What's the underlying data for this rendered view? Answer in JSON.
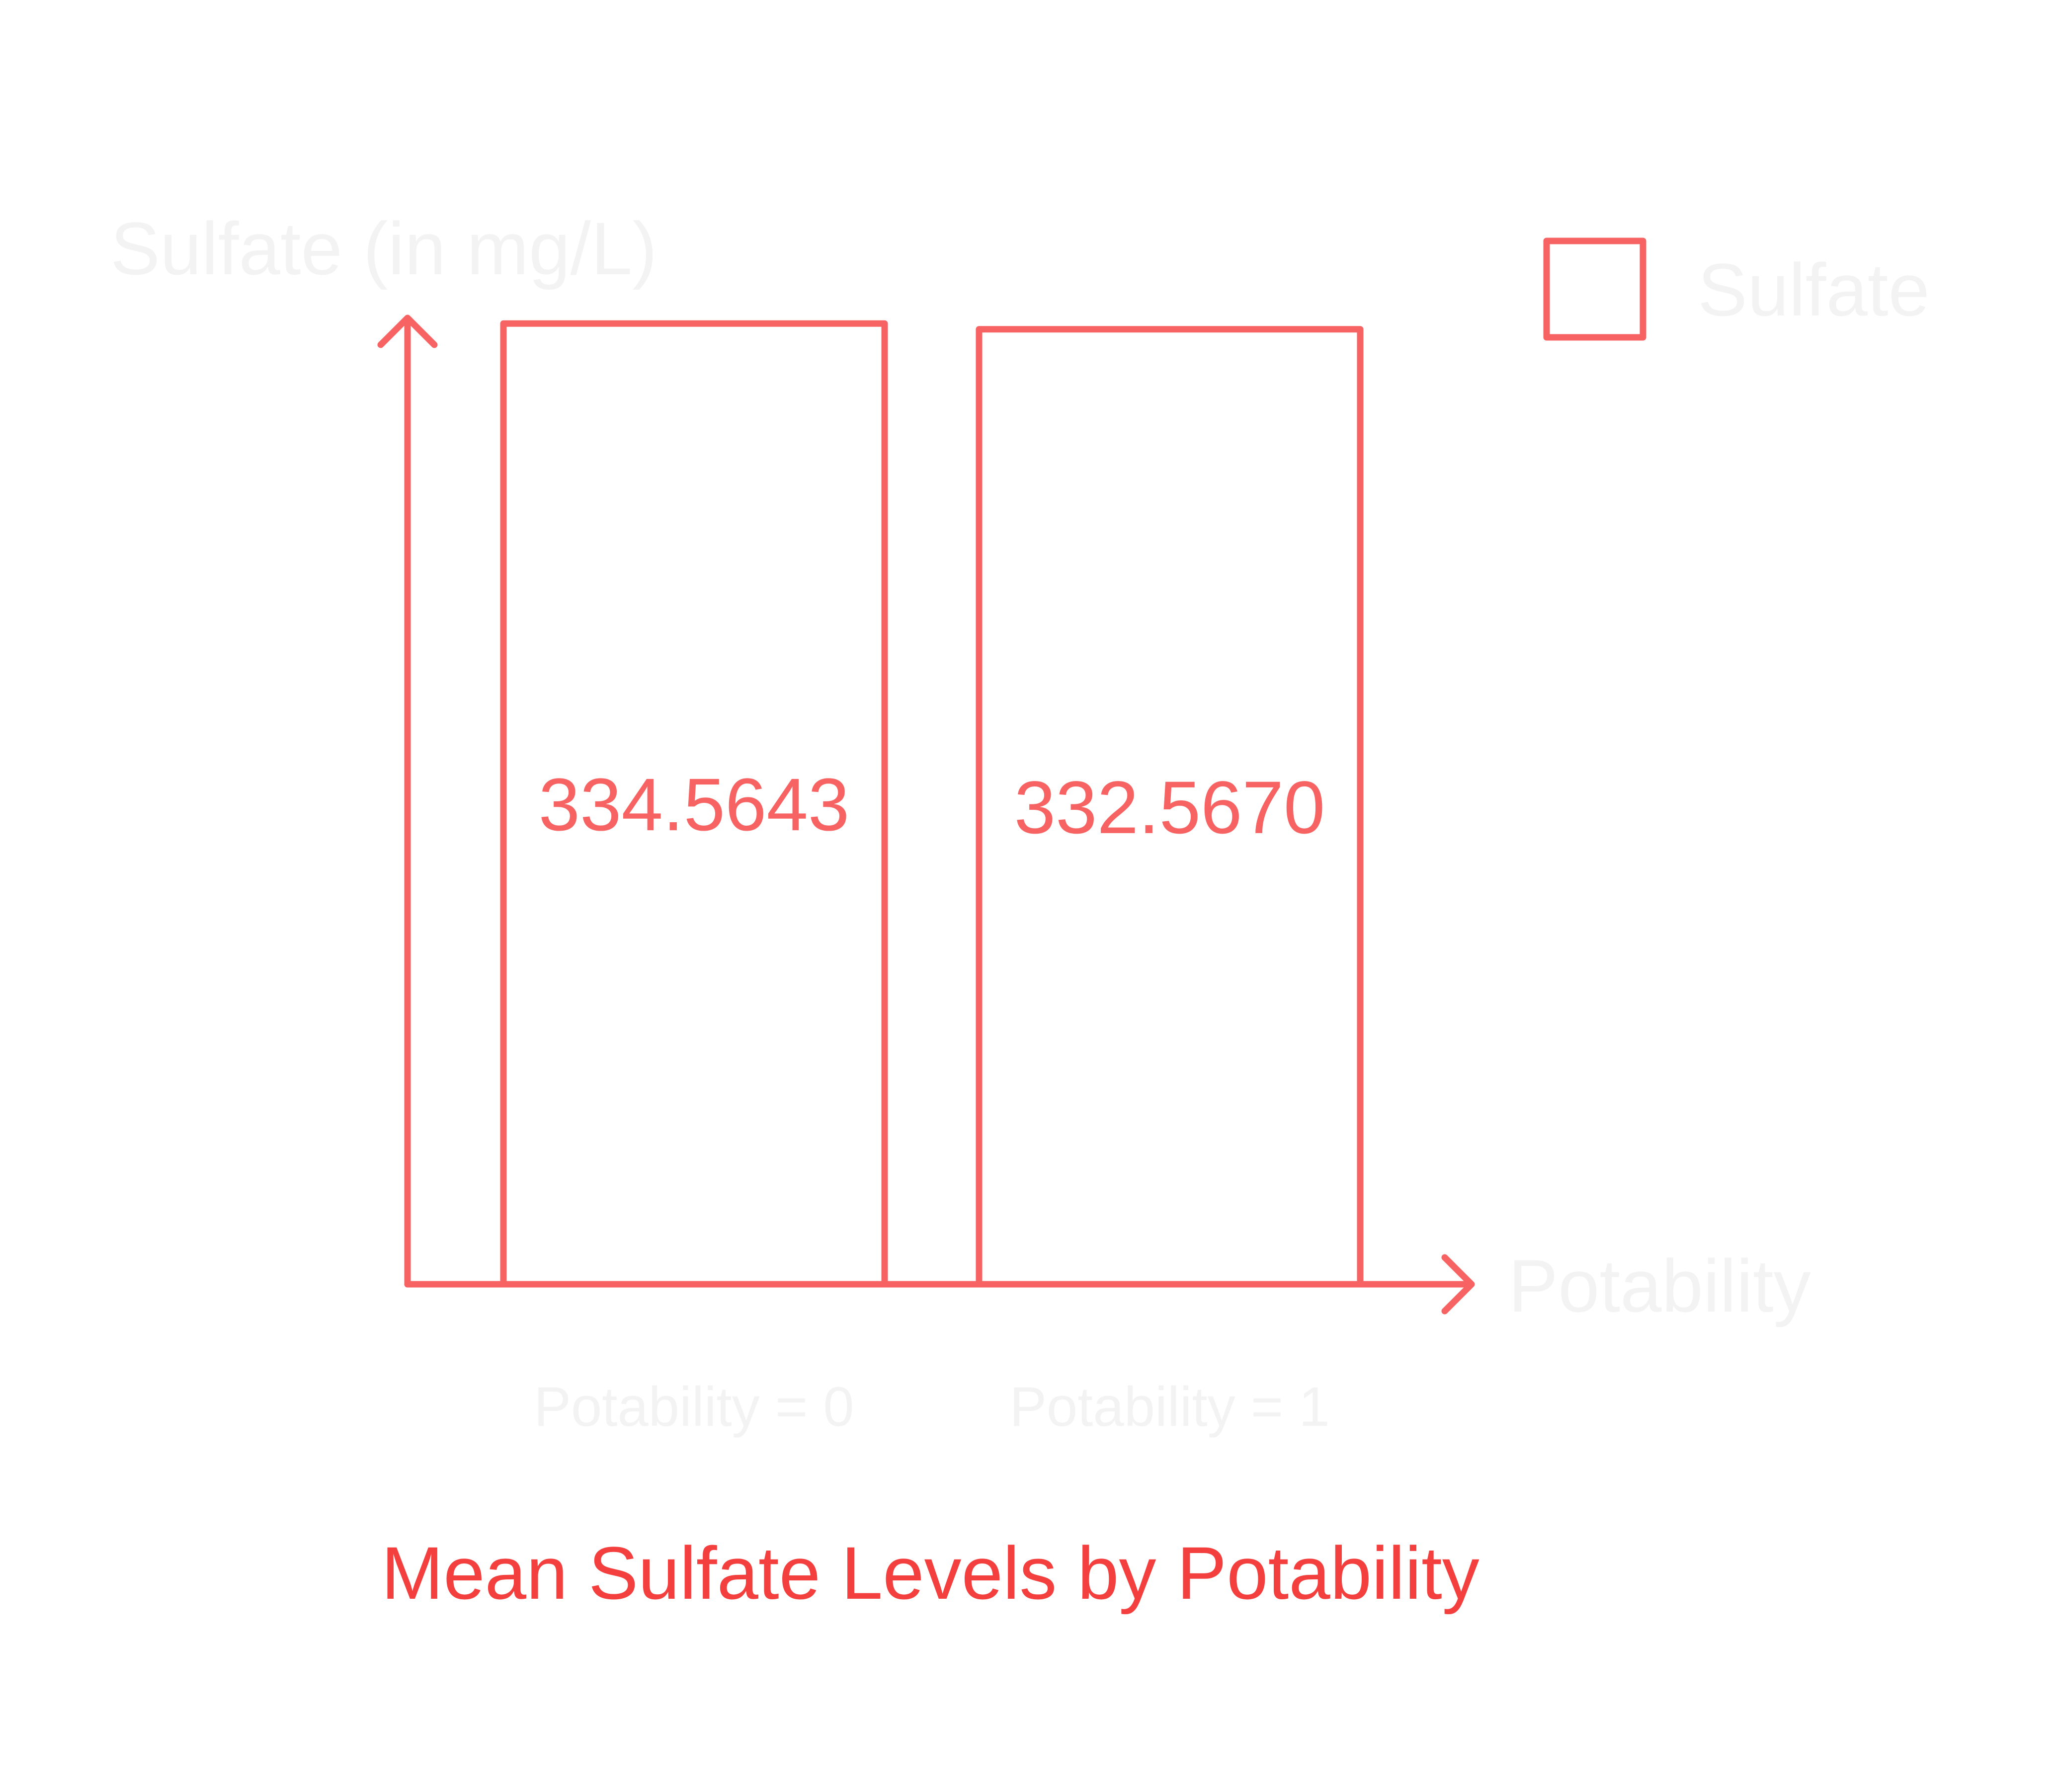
{
  "colors": {
    "stroke": "#f76363",
    "title": "#f43f3f",
    "faint_text": "#f3f3f3",
    "background": "#ffffff"
  },
  "chart_data": {
    "type": "bar",
    "title": "Mean Sulfate Levels by Potability",
    "xlabel": "Potability",
    "ylabel": "Sulfate (in mg/L)",
    "categories": [
      "Potability = 0",
      "Potability = 1"
    ],
    "series": [
      {
        "name": "Sulfate",
        "values": [
          334.5643,
          332.567
        ],
        "value_labels": [
          "334.5643",
          "332.5670"
        ]
      }
    ],
    "legend": {
      "position": "top-right",
      "entries": [
        "Sulfate"
      ]
    },
    "ylim": [
      0,
      336.5
    ],
    "grid": false
  }
}
